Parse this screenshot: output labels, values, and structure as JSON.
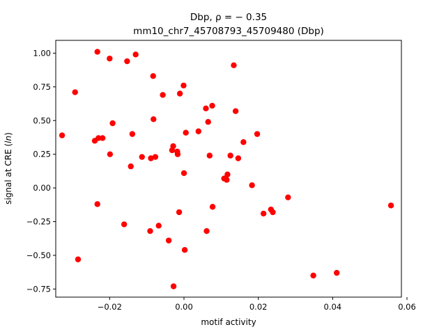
{
  "chart_data": {
    "type": "scatter",
    "title_line1": "Dbp, ρ = − 0.35",
    "title_line2": "mm10_chr7_45708793_45709480 (Dbp)",
    "xlabel": "motif activity",
    "ylabel_prefix": "signal at CRE (",
    "ylabel_italic": "ln",
    "ylabel_suffix": ")",
    "xlim": [
      -0.0345,
      0.0585
    ],
    "ylim": [
      -0.81,
      1.095
    ],
    "xticks": [
      -0.02,
      0.0,
      0.02,
      0.04,
      0.06
    ],
    "xtick_labels": [
      "−0.02",
      "0.00",
      "0.02",
      "0.04",
      "0.06"
    ],
    "yticks": [
      -0.75,
      -0.5,
      -0.25,
      0.0,
      0.25,
      0.5,
      0.75,
      1.0
    ],
    "ytick_labels": [
      "−0.75",
      "−0.50",
      "−0.25",
      "0.00",
      "0.25",
      "0.50",
      "0.75",
      "1.00"
    ],
    "grid": false,
    "marker_color": "#ff0000",
    "points": [
      {
        "x": -0.0328,
        "y": 0.39
      },
      {
        "x": -0.0293,
        "y": 0.71
      },
      {
        "x": -0.0285,
        "y": -0.53
      },
      {
        "x": -0.024,
        "y": 0.35
      },
      {
        "x": -0.0233,
        "y": 1.01
      },
      {
        "x": -0.0233,
        "y": -0.12
      },
      {
        "x": -0.023,
        "y": 0.37
      },
      {
        "x": -0.0219,
        "y": 0.37
      },
      {
        "x": -0.02,
        "y": 0.96
      },
      {
        "x": -0.0199,
        "y": 0.25
      },
      {
        "x": -0.0192,
        "y": 0.48
      },
      {
        "x": -0.0161,
        "y": -0.27
      },
      {
        "x": -0.0153,
        "y": 0.94
      },
      {
        "x": -0.0143,
        "y": 0.16
      },
      {
        "x": -0.0139,
        "y": 0.4
      },
      {
        "x": -0.013,
        "y": 0.99
      },
      {
        "x": -0.0113,
        "y": 0.23
      },
      {
        "x": -0.0091,
        "y": -0.32
      },
      {
        "x": -0.0089,
        "y": 0.22
      },
      {
        "x": -0.0083,
        "y": 0.83
      },
      {
        "x": -0.0082,
        "y": 0.51
      },
      {
        "x": -0.0077,
        "y": 0.23
      },
      {
        "x": -0.0068,
        "y": -0.28
      },
      {
        "x": -0.0057,
        "y": 0.69
      },
      {
        "x": -0.0041,
        "y": -0.39
      },
      {
        "x": -0.0032,
        "y": 0.28
      },
      {
        "x": -0.0029,
        "y": 0.31
      },
      {
        "x": -0.0028,
        "y": -0.73
      },
      {
        "x": -0.0018,
        "y": 0.27
      },
      {
        "x": -0.0017,
        "y": 0.25
      },
      {
        "x": -0.0013,
        "y": -0.18
      },
      {
        "x": -0.0011,
        "y": 0.7
      },
      {
        "x": -0.0001,
        "y": 0.76
      },
      {
        "x": 0.0,
        "y": 0.11
      },
      {
        "x": 0.0002,
        "y": -0.46
      },
      {
        "x": 0.0005,
        "y": 0.41
      },
      {
        "x": 0.0039,
        "y": 0.42
      },
      {
        "x": 0.0059,
        "y": 0.59
      },
      {
        "x": 0.0061,
        "y": -0.32
      },
      {
        "x": 0.0065,
        "y": 0.49
      },
      {
        "x": 0.0069,
        "y": 0.24
      },
      {
        "x": 0.0076,
        "y": 0.61
      },
      {
        "x": 0.0077,
        "y": -0.14
      },
      {
        "x": 0.0108,
        "y": 0.07
      },
      {
        "x": 0.0115,
        "y": 0.06
      },
      {
        "x": 0.0117,
        "y": 0.1
      },
      {
        "x": 0.0125,
        "y": 0.24
      },
      {
        "x": 0.0134,
        "y": 0.91
      },
      {
        "x": 0.0139,
        "y": 0.57
      },
      {
        "x": 0.0146,
        "y": 0.22
      },
      {
        "x": 0.016,
        "y": 0.34
      },
      {
        "x": 0.0183,
        "y": 0.02
      },
      {
        "x": 0.0197,
        "y": 0.4
      },
      {
        "x": 0.0214,
        "y": -0.19
      },
      {
        "x": 0.0234,
        "y": -0.16
      },
      {
        "x": 0.0239,
        "y": -0.18
      },
      {
        "x": 0.028,
        "y": -0.07
      },
      {
        "x": 0.0348,
        "y": -0.65
      },
      {
        "x": 0.0411,
        "y": -0.63
      },
      {
        "x": 0.0557,
        "y": -0.13
      }
    ]
  }
}
